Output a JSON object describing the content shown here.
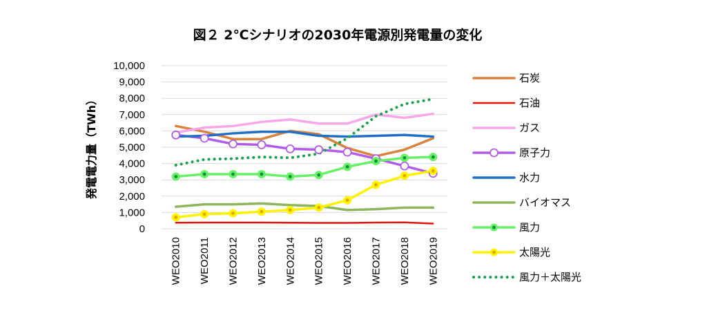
{
  "chart_data": {
    "type": "line",
    "title": "図２ 2℃シナリオの2030年電源別発電量の変化",
    "ylabel": "発電電力量（TWh）",
    "xlabel": "",
    "ylim": [
      0,
      10000
    ],
    "yticks": [
      "0",
      "1,000",
      "2,000",
      "3,000",
      "4,000",
      "5,000",
      "6,000",
      "7,000",
      "8,000",
      "9,000",
      "10,000"
    ],
    "categories": [
      "WEO2010",
      "WEO2011",
      "WEO2012",
      "WEO2013",
      "WEO2014",
      "WEO2015",
      "WEO2016",
      "WEO2017",
      "WEO2018",
      "WEO2019"
    ],
    "grid": true,
    "legend_position": "right",
    "series": [
      {
        "name": "石炭",
        "color": "#D9823B",
        "style": "solid",
        "marker": "none",
        "values": [
          6300,
          5950,
          5500,
          5500,
          6000,
          5800,
          4950,
          4450,
          4850,
          5550
        ]
      },
      {
        "name": "石油",
        "color": "#E3120B",
        "style": "solid",
        "marker": "none",
        "values": [
          370,
          380,
          380,
          380,
          370,
          360,
          360,
          380,
          390,
          320
        ]
      },
      {
        "name": "ガス",
        "color": "#F7A6EA",
        "style": "solid",
        "marker": "none",
        "values": [
          5900,
          6200,
          6300,
          6550,
          6700,
          6450,
          6450,
          7000,
          6800,
          7050
        ]
      },
      {
        "name": "原子力",
        "color": "#B15CE6",
        "style": "solid",
        "marker": "open-circle",
        "values": [
          5750,
          5550,
          5200,
          5150,
          4900,
          4850,
          4700,
          4300,
          3850,
          3400
        ]
      },
      {
        "name": "水力",
        "color": "#1F6FC6",
        "style": "solid",
        "marker": "none",
        "values": [
          5650,
          5700,
          5850,
          5950,
          5950,
          5700,
          5650,
          5700,
          5750,
          5650
        ]
      },
      {
        "name": "バイオマス",
        "color": "#8DB55B",
        "style": "solid",
        "marker": "none",
        "values": [
          1350,
          1500,
          1500,
          1550,
          1450,
          1400,
          1150,
          1200,
          1300,
          1300
        ]
      },
      {
        "name": "風力",
        "color": "#66F166",
        "style": "solid",
        "marker": "dot",
        "values": [
          3200,
          3350,
          3350,
          3350,
          3200,
          3300,
          3800,
          4150,
          4350,
          4400
        ]
      },
      {
        "name": "太陽光",
        "color": "#FFF200",
        "style": "solid",
        "marker": "dot",
        "values": [
          700,
          900,
          950,
          1050,
          1150,
          1300,
          1750,
          2700,
          3250,
          3550
        ]
      },
      {
        "name": "風力＋太陽光",
        "color": "#14A34A",
        "style": "dotted",
        "marker": "none",
        "values": [
          3900,
          4250,
          4300,
          4400,
          4350,
          4600,
          5550,
          6900,
          7650,
          7950
        ]
      }
    ]
  }
}
